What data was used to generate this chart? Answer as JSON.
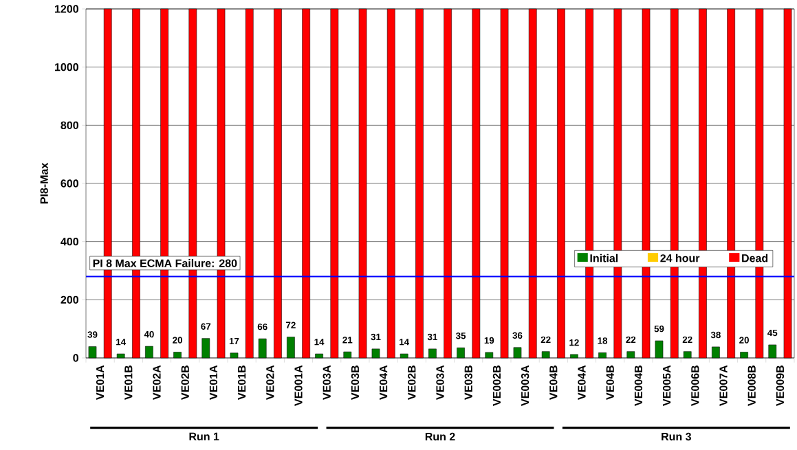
{
  "chart_data": {
    "type": "bar",
    "ylabel": "PI8-Max",
    "categories": [
      "VE01A",
      "VE01B",
      "VE02A",
      "VE02B",
      "VE01A",
      "VE01B",
      "VE02A",
      "VE001A",
      "VE03A",
      "VE03B",
      "VE04A",
      "VE02B",
      "VE03A",
      "VE03B",
      "VE002B",
      "VE003A",
      "VE04B",
      "VE04A",
      "VE04B",
      "VE004B",
      "VE005A",
      "VE006B",
      "VE007A",
      "VE008B",
      "VE009B"
    ],
    "series": [
      {
        "name": "Initial",
        "color": "#008000",
        "values": [
          39,
          14,
          40,
          20,
          67,
          17,
          66,
          72,
          14,
          21,
          31,
          14,
          31,
          35,
          19,
          36,
          22,
          12,
          18,
          22,
          59,
          22,
          38,
          20,
          45
        ],
        "value_labels": [
          "39",
          "14",
          "40",
          "20",
          "67",
          "17",
          "66",
          "72",
          "14",
          "21",
          "31",
          "14",
          "31",
          "35",
          "19",
          "36",
          "22",
          "12",
          "18",
          "22",
          "59",
          "22",
          "38",
          "20",
          "45"
        ]
      },
      {
        "name": "24 hour",
        "color": "#ffcc00",
        "values": [
          null,
          null,
          null,
          null,
          null,
          null,
          null,
          null,
          null,
          null,
          null,
          null,
          null,
          null,
          null,
          null,
          null,
          null,
          null,
          null,
          null,
          null,
          null,
          null,
          null
        ]
      },
      {
        "name": "Dead",
        "color": "#ff0000",
        "values": [
          1200,
          1200,
          1200,
          1200,
          1200,
          1200,
          1200,
          1200,
          1200,
          1200,
          1200,
          1200,
          1200,
          1200,
          1200,
          1200,
          1200,
          1200,
          1200,
          1200,
          1200,
          1200,
          1200,
          1200,
          1200
        ]
      }
    ],
    "ylim": [
      0,
      1200
    ],
    "yticks": [
      0,
      200,
      400,
      600,
      800,
      1000,
      1200
    ],
    "grid": "y",
    "legend": "right",
    "ref_lines": [
      {
        "axis": "y",
        "value": 280,
        "label": "PI 8 Max ECMA Failure:  280",
        "color": "#0000ff"
      }
    ],
    "annotations": [
      "Run 1",
      "Run 2",
      "Run 3"
    ]
  }
}
